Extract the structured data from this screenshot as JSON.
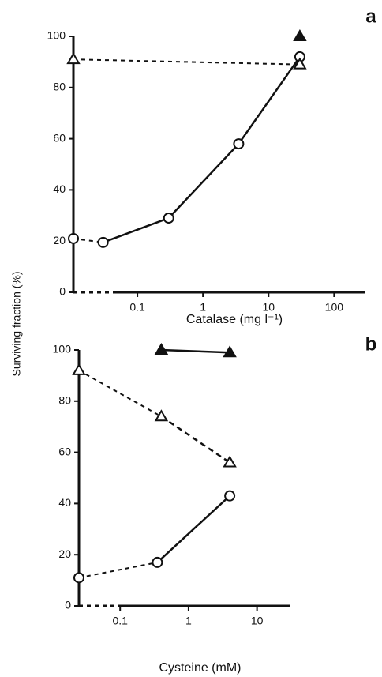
{
  "y_label": "Surviving fraction (%)",
  "chart_data": [
    {
      "type": "scatter",
      "panel_label": "a",
      "x_label": "Catalase (mg l⁻¹)",
      "log_x": true,
      "xlim": [
        0.01,
        300
      ],
      "xticks": [
        0.1,
        1,
        10,
        100
      ],
      "ylim": [
        0,
        100
      ],
      "yticks": [
        0,
        20,
        40,
        60,
        80,
        100
      ],
      "series": [
        {
          "marker": "circle",
          "filled": false,
          "line_style": "solid",
          "x": [
            null,
            0.03,
            0.3,
            3.5,
            30
          ],
          "values": [
            21,
            19.5,
            29,
            58,
            92
          ]
        },
        {
          "marker": "triangle",
          "filled": false,
          "line_style": "dashed",
          "x": [
            null,
            30
          ],
          "values": [
            91,
            89
          ]
        },
        {
          "marker": "triangle",
          "filled": true,
          "line_style": "solid",
          "x": [
            30
          ],
          "values": [
            100
          ]
        }
      ]
    },
    {
      "type": "scatter",
      "panel_label": "b",
      "x_label": "Cysteine (mM)",
      "log_x": true,
      "xlim": [
        0.025,
        30
      ],
      "xticks": [
        0.1,
        1,
        10
      ],
      "ylim": [
        0,
        100
      ],
      "yticks": [
        0,
        20,
        40,
        60,
        80,
        100
      ],
      "series": [
        {
          "marker": "circle",
          "filled": false,
          "line_style": "solid",
          "x": [
            null,
            0.35,
            4
          ],
          "values": [
            11,
            17,
            43
          ]
        },
        {
          "marker": "triangle",
          "filled": false,
          "line_style": "dashed",
          "x": [
            null,
            0.4,
            4
          ],
          "values": [
            92,
            74,
            56
          ]
        },
        {
          "marker": "triangle",
          "filled": true,
          "line_style": "solid",
          "x": [
            0.4,
            4
          ],
          "values": [
            100,
            99
          ]
        }
      ]
    }
  ]
}
